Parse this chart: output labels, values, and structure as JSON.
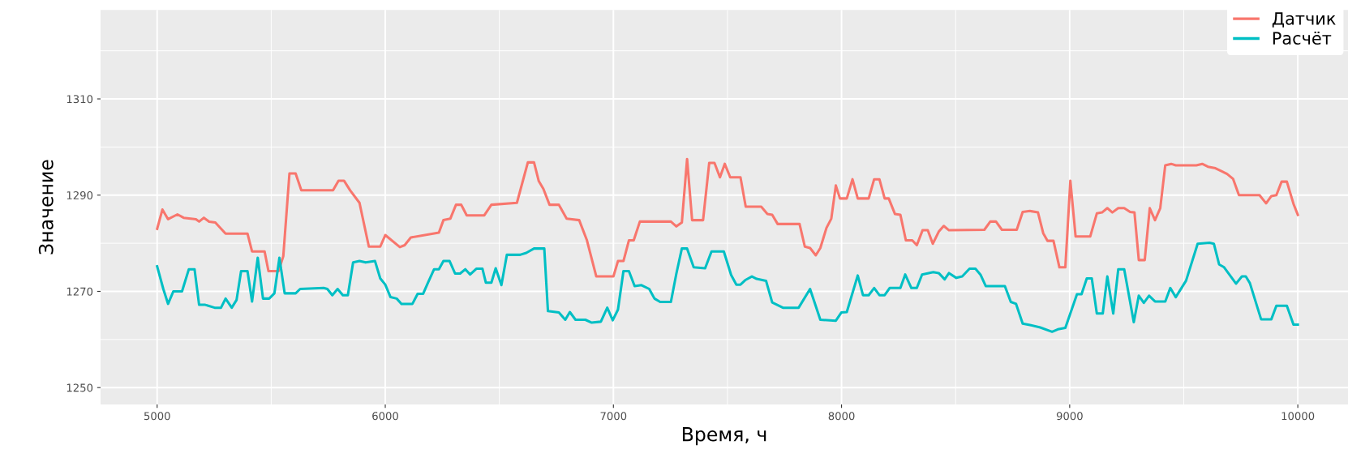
{
  "chart_data": {
    "type": "line",
    "xlabel": "Время, ч",
    "ylabel": "Значение",
    "xlim": [
      4752,
      10220
    ],
    "xticks": [
      5000,
      6000,
      7000,
      8000,
      9000,
      10000
    ],
    "ylim": [
      1246.5,
      1328.5
    ],
    "yticks": [
      1250,
      1270,
      1290,
      1310
    ],
    "grid": true,
    "legend": "top right",
    "line_style": "solid",
    "series": [
      {
        "name": "Датчик",
        "color": "#f8766d",
        "x": [
          5000,
          5023,
          5048,
          5089,
          5116,
          5170,
          5184,
          5205,
          5228,
          5255,
          5300,
          5396,
          5416,
          5471,
          5488,
          5532,
          5553,
          5580,
          5607,
          5632,
          5771,
          5795,
          5819,
          5846,
          5887,
          5928,
          5978,
          6000,
          6064,
          6085,
          6112,
          6235,
          6255,
          6285,
          6310,
          6333,
          6357,
          6434,
          6465,
          6577,
          6625,
          6652,
          6673,
          6693,
          6720,
          6761,
          6795,
          6850,
          6884,
          6925,
          7000,
          7020,
          7044,
          7068,
          7089,
          7116,
          7252,
          7276,
          7300,
          7323,
          7345,
          7393,
          7420,
          7443,
          7467,
          7488,
          7512,
          7557,
          7580,
          7648,
          7675,
          7696,
          7720,
          7816,
          7839,
          7862,
          7887,
          7907,
          7934,
          7955,
          7975,
          7993,
          8023,
          8048,
          8071,
          8119,
          8143,
          8166,
          8189,
          8207,
          8234,
          8258,
          8282,
          8310,
          8330,
          8355,
          8378,
          8400,
          8426,
          8448,
          8471,
          8626,
          8652,
          8677,
          8703,
          8768,
          8794,
          8826,
          8861,
          8884,
          8903,
          8929,
          8955,
          8981,
          9003,
          9026,
          9090,
          9119,
          9142,
          9165,
          9187,
          9213,
          9239,
          9265,
          9284,
          9303,
          9329,
          9351,
          9374,
          9397,
          9419,
          9445,
          9465,
          9555,
          9581,
          9606,
          9639,
          9665,
          9690,
          9716,
          9742,
          9832,
          9861,
          9884,
          9906,
          9929,
          9952,
          9981,
          10000
        ],
        "values": [
          1283,
          1287,
          1285,
          1286,
          1285.3,
          1285,
          1284.5,
          1285.3,
          1284.5,
          1284.3,
          1282,
          1282,
          1278.3,
          1278.3,
          1274.2,
          1274.2,
          1277.3,
          1294.5,
          1294.5,
          1291,
          1291,
          1293,
          1293,
          1291,
          1288.4,
          1279.3,
          1279.3,
          1281.7,
          1279.2,
          1279.6,
          1281.2,
          1282.2,
          1284.8,
          1285.1,
          1288,
          1288,
          1285.8,
          1285.8,
          1288,
          1288.4,
          1296.8,
          1296.8,
          1292.9,
          1291.3,
          1288,
          1288,
          1285.1,
          1284.8,
          1280.6,
          1273.1,
          1273.1,
          1276.3,
          1276.3,
          1280.6,
          1280.6,
          1284.5,
          1284.5,
          1283.5,
          1284.3,
          1297.5,
          1284.8,
          1284.8,
          1296.7,
          1296.7,
          1293.7,
          1296.5,
          1293.7,
          1293.7,
          1287.6,
          1287.6,
          1286.1,
          1285.9,
          1284,
          1284,
          1279.3,
          1279,
          1277.5,
          1279,
          1283.2,
          1285.1,
          1292,
          1289.3,
          1289.3,
          1293.3,
          1289.3,
          1289.3,
          1293.3,
          1293.3,
          1289.3,
          1289.3,
          1286.1,
          1285.9,
          1280.6,
          1280.6,
          1279.6,
          1282.7,
          1282.7,
          1279.9,
          1282.4,
          1283.6,
          1282.7,
          1282.8,
          1284.5,
          1284.5,
          1282.8,
          1282.8,
          1286.5,
          1286.7,
          1286.4,
          1282.1,
          1280.5,
          1280.5,
          1275,
          1275,
          1293,
          1281.4,
          1281.4,
          1286.2,
          1286.4,
          1287.3,
          1286.4,
          1287.3,
          1287.3,
          1286.5,
          1286.4,
          1276.5,
          1276.5,
          1287.3,
          1284.8,
          1287.3,
          1296.2,
          1296.5,
          1296.2,
          1296.2,
          1296.5,
          1295.9,
          1295.6,
          1295,
          1294.4,
          1293.4,
          1290,
          1290,
          1288.3,
          1289.8,
          1290,
          1292.8,
          1292.8,
          1288.2,
          1285.9
        ]
      },
      {
        "name": "Расчёт",
        "color": "#00bfc4",
        "x": [
          5000,
          5027,
          5048,
          5071,
          5109,
          5139,
          5164,
          5184,
          5211,
          5252,
          5280,
          5300,
          5327,
          5348,
          5368,
          5396,
          5416,
          5441,
          5464,
          5491,
          5514,
          5536,
          5559,
          5607,
          5627,
          5730,
          5746,
          5768,
          5791,
          5814,
          5836,
          5859,
          5887,
          5914,
          5955,
          5978,
          6000,
          6023,
          6050,
          6071,
          6119,
          6142,
          6166,
          6187,
          6214,
          6235,
          6255,
          6282,
          6306,
          6328,
          6351,
          6372,
          6399,
          6426,
          6441,
          6465,
          6484,
          6509,
          6533,
          6591,
          6618,
          6652,
          6697,
          6713,
          6761,
          6789,
          6809,
          6834,
          6877,
          6905,
          6945,
          6973,
          6997,
          7020,
          7044,
          7068,
          7093,
          7123,
          7157,
          7180,
          7205,
          7252,
          7276,
          7300,
          7323,
          7352,
          7402,
          7430,
          7484,
          7516,
          7539,
          7557,
          7580,
          7607,
          7628,
          7669,
          7696,
          7743,
          7812,
          7862,
          7907,
          7975,
          7999,
          8023,
          8071,
          8094,
          8119,
          8143,
          8166,
          8189,
          8211,
          8258,
          8279,
          8306,
          8330,
          8353,
          8402,
          8426,
          8452,
          8471,
          8503,
          8529,
          8561,
          8587,
          8610,
          8632,
          8716,
          8742,
          8765,
          8794,
          8826,
          8871,
          8923,
          8948,
          8981,
          9032,
          9052,
          9075,
          9097,
          9119,
          9145,
          9165,
          9191,
          9213,
          9239,
          9281,
          9303,
          9325,
          9348,
          9374,
          9419,
          9441,
          9465,
          9510,
          9561,
          9613,
          9632,
          9655,
          9677,
          9729,
          9755,
          9772,
          9790,
          9839,
          9884,
          9906,
          9952,
          9981,
          10000
        ],
        "values": [
          1275.2,
          1270.5,
          1267.4,
          1270,
          1270,
          1274.6,
          1274.6,
          1267.2,
          1267.2,
          1266.6,
          1266.6,
          1268.5,
          1266.6,
          1268.2,
          1274.2,
          1274.2,
          1267.9,
          1277,
          1268.5,
          1268.5,
          1269.6,
          1277,
          1269.6,
          1269.6,
          1270.5,
          1270.7,
          1270.5,
          1269.2,
          1270.5,
          1269.2,
          1269.2,
          1276,
          1276.3,
          1276,
          1276.3,
          1272.7,
          1271.4,
          1268.8,
          1268.5,
          1267.4,
          1267.4,
          1269.5,
          1269.5,
          1271.8,
          1274.6,
          1274.6,
          1276.3,
          1276.3,
          1273.7,
          1273.7,
          1274.6,
          1273.5,
          1274.7,
          1274.7,
          1271.8,
          1271.8,
          1274.8,
          1271.3,
          1277.6,
          1277.6,
          1278,
          1278.9,
          1278.9,
          1265.9,
          1265.6,
          1264.1,
          1265.7,
          1264.1,
          1264.1,
          1263.5,
          1263.7,
          1266.6,
          1264,
          1266.2,
          1274.2,
          1274.2,
          1271.1,
          1271.3,
          1270.5,
          1268.5,
          1267.8,
          1267.8,
          1273.7,
          1278.9,
          1278.9,
          1275,
          1274.8,
          1278.3,
          1278.3,
          1273.4,
          1271.4,
          1271.4,
          1272.4,
          1273.1,
          1272.6,
          1272.2,
          1267.7,
          1266.6,
          1266.6,
          1270.5,
          1264.1,
          1263.9,
          1265.6,
          1265.7,
          1273.3,
          1269.2,
          1269.2,
          1270.7,
          1269.2,
          1269.2,
          1270.7,
          1270.7,
          1273.5,
          1270.7,
          1270.7,
          1273.5,
          1274,
          1273.8,
          1272.5,
          1273.8,
          1272.8,
          1273.1,
          1274.7,
          1274.7,
          1273.4,
          1271.1,
          1271.1,
          1267.8,
          1267.4,
          1263.3,
          1263,
          1262.5,
          1261.6,
          1262.1,
          1262.4,
          1269.4,
          1269.4,
          1272.7,
          1272.7,
          1265.4,
          1265.4,
          1273.1,
          1265.4,
          1274.6,
          1274.6,
          1263.6,
          1269.1,
          1267.6,
          1269.1,
          1267.9,
          1267.9,
          1270.7,
          1268.8,
          1272.2,
          1279.9,
          1280.1,
          1279.9,
          1275.6,
          1275,
          1271.6,
          1273.1,
          1273.1,
          1271.7,
          1264.2,
          1264.2,
          1267,
          1267,
          1263.1,
          1263.1
        ]
      }
    ]
  }
}
